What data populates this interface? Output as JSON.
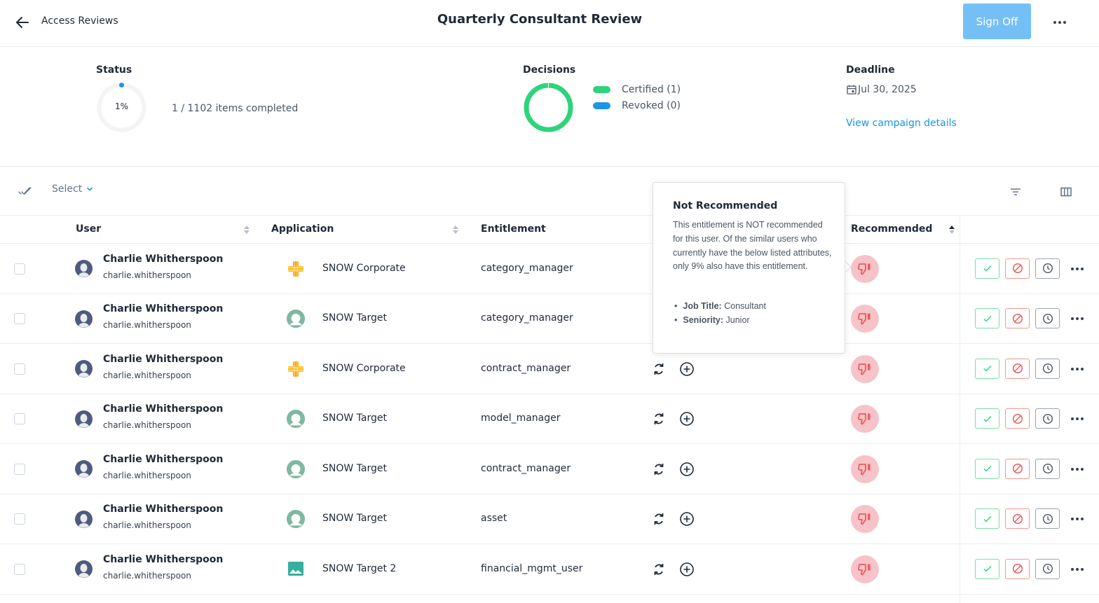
{
  "header": {
    "breadcrumb": "Access Reviews",
    "title": "Quarterly Consultant Review",
    "signoff_label": "Sign Off",
    "more_icon": "more-horizontal-icon"
  },
  "summary": {
    "status": {
      "label": "Status",
      "percent": "1%",
      "completed_text": "1 / 1102 items completed",
      "completed": 1,
      "total": 1102
    },
    "decisions": {
      "label": "Decisions",
      "legend": [
        {
          "label": "Certified (1)",
          "color": "#2ed47a"
        },
        {
          "label": "Revoked (0)",
          "color": "#1a96e8"
        }
      ]
    },
    "deadline": {
      "label": "Deadline",
      "date": "Jul 30, 2025",
      "link": "View campaign details"
    }
  },
  "toolbar": {
    "select_label": "Select"
  },
  "table": {
    "columns": {
      "user": "User",
      "application": "Application",
      "entitlement": "Entitlement",
      "recommended": "Recommended"
    },
    "rows": [
      {
        "name": "Charlie Whitherspoon",
        "id": "charlie.whitherspoon",
        "app": "SNOW Corporate",
        "app_icon": "corporate",
        "entitlement": "category_manager"
      },
      {
        "name": "Charlie Whitherspoon",
        "id": "charlie.whitherspoon",
        "app": "SNOW Target",
        "app_icon": "target",
        "entitlement": "category_manager"
      },
      {
        "name": "Charlie Whitherspoon",
        "id": "charlie.whitherspoon",
        "app": "SNOW Corporate",
        "app_icon": "corporate",
        "entitlement": "contract_manager"
      },
      {
        "name": "Charlie Whitherspoon",
        "id": "charlie.whitherspoon",
        "app": "SNOW Target",
        "app_icon": "target",
        "entitlement": "model_manager"
      },
      {
        "name": "Charlie Whitherspoon",
        "id": "charlie.whitherspoon",
        "app": "SNOW Target",
        "app_icon": "target",
        "entitlement": "contract_manager"
      },
      {
        "name": "Charlie Whitherspoon",
        "id": "charlie.whitherspoon",
        "app": "SNOW Target",
        "app_icon": "target",
        "entitlement": "asset"
      },
      {
        "name": "Charlie Whitherspoon",
        "id": "charlie.whitherspoon",
        "app": "SNOW Target 2",
        "app_icon": "image",
        "entitlement": "financial_mgmt_user"
      }
    ]
  },
  "popover": {
    "title": "Not Recommended",
    "body": "This entitlement is NOT recommended for this user. Of the similar users who currently have the below listed attributes, only 9% also have this entitlement.",
    "attributes": [
      {
        "key": "Job Title:",
        "value": "Consultant"
      },
      {
        "key": "Seniority:",
        "value": "Junior"
      }
    ]
  },
  "colors": {
    "accent": "#1a96e8",
    "signoff_bg": "#74c0f6",
    "certified": "#2ed47a",
    "revoked": "#1a96e8",
    "not_recommended_bg": "#f6c3c8",
    "not_recommended_fg": "#ef5b5b"
  }
}
